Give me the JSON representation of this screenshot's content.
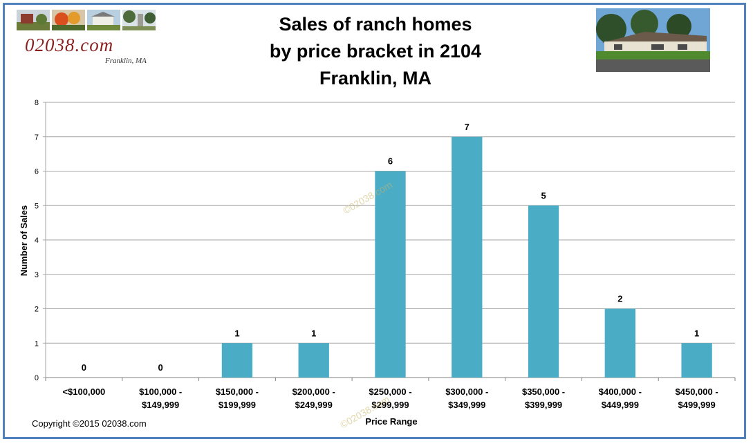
{
  "logo": {
    "text": "02038.com",
    "subtext": "Franklin, MA"
  },
  "title_lines": [
    "Sales of ranch homes",
    "by price bracket in 2104",
    "Franklin, MA"
  ],
  "copyright": "Copyright ©2015 02038.com",
  "watermark": "©02038.com",
  "colors": {
    "bar": "#4bacc6",
    "border": "#4f81bd",
    "grid": "#a6a6a6"
  },
  "chart_data": {
    "type": "bar",
    "title": "Sales of ranch homes by price bracket in 2104 Franklin, MA",
    "xlabel": "Price Range",
    "ylabel": "Number  of Sales",
    "ylim": [
      0,
      8
    ],
    "yticks": [
      0,
      1,
      2,
      3,
      4,
      5,
      6,
      7,
      8
    ],
    "grid": true,
    "legend": "none",
    "data_labels": true,
    "categories": [
      [
        "<$100,000"
      ],
      [
        "$100,000 -",
        "$149,999"
      ],
      [
        "$150,000 -",
        "$199,999"
      ],
      [
        "$200,000 -",
        "$249,999"
      ],
      [
        "$250,000 -",
        "$299,999"
      ],
      [
        "$300,000 -",
        "$349,999"
      ],
      [
        "$350,000 -",
        "$399,999"
      ],
      [
        "$400,000 -",
        "$449,999"
      ],
      [
        "$450,000 -",
        "$499,999"
      ]
    ],
    "values": [
      0,
      0,
      1,
      1,
      6,
      7,
      5,
      2,
      1
    ]
  }
}
